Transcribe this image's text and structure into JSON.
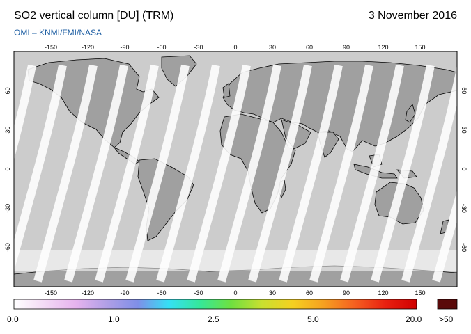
{
  "header": {
    "title": "SO2 vertical column [DU] (TRM)",
    "date": "3 November 2016",
    "subtitle": "OMI  –  KNMI/FMI/NASA"
  },
  "map": {
    "lon_ticks": [
      "-150",
      "-120",
      "-90",
      "-60",
      "-30",
      "0",
      "30",
      "60",
      "90",
      "120",
      "150"
    ],
    "lat_ticks": [
      "60",
      "30",
      "0",
      "-30",
      "-60"
    ],
    "lon_range": [
      -180,
      180
    ],
    "lat_range": [
      -90,
      90
    ],
    "colors": {
      "background": "#cccccc",
      "land": "#a0a0a0",
      "coast": "#000000",
      "swath_gap": "#ffffff"
    }
  },
  "colorbar": {
    "labels": [
      "0.0",
      "1.0",
      "2.5",
      "5.0",
      "20.0"
    ],
    "overflow_label": ">50",
    "colors": [
      "#ffffff",
      "#f3d9f5",
      "#e6b3ee",
      "#b09fe6",
      "#7f8fe8",
      "#35e0f5",
      "#35e89a",
      "#6ee040",
      "#c8e030",
      "#f5d020",
      "#f5a020",
      "#f56020",
      "#e82010",
      "#d00000"
    ],
    "overflow_color": "#5a0a0a"
  }
}
